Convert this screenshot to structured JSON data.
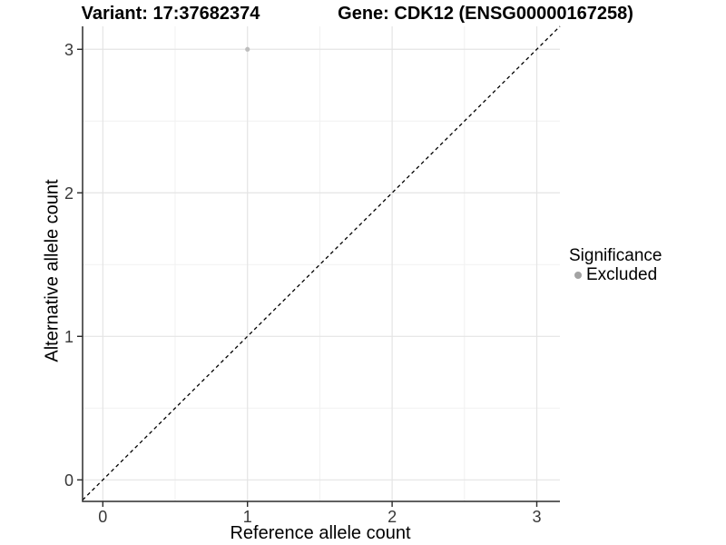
{
  "chart_data": {
    "type": "scatter",
    "titles": {
      "left": "Variant: 17:37682374",
      "right": "Gene: CDK12 (ENSG00000167258)"
    },
    "xlabel": "Reference allele count",
    "ylabel": "Alternative allele count",
    "xlim": [
      -0.14,
      3.16
    ],
    "ylim": [
      -0.15,
      3.16
    ],
    "x_major_ticks": [
      0,
      1,
      2,
      3
    ],
    "y_major_ticks": [
      0,
      1,
      2,
      3
    ],
    "x_minor_gridlines": [
      0.5,
      1.5,
      2.5
    ],
    "y_minor_gridlines": [
      0.5,
      1.5,
      2.5
    ],
    "grid": "major+minor",
    "legend_position": "right",
    "series": [
      {
        "name": "Excluded",
        "marker": "circle",
        "color": "#bdbdbd",
        "points": [
          {
            "x": 1,
            "y": 3
          }
        ]
      }
    ],
    "reference_line": {
      "kind": "identity y=x",
      "style": "dashed",
      "color": "#000000"
    },
    "legend": {
      "title": "Significance",
      "entries": [
        {
          "label": "Excluded",
          "color": "#a3a3a3",
          "marker": "circle"
        }
      ]
    }
  },
  "colors": {
    "background": "#ffffff",
    "grid_major": "#e4e4e4",
    "grid_minor": "#f1f1f1",
    "axis": "#2b2b2b",
    "tick_label": "#383838"
  }
}
